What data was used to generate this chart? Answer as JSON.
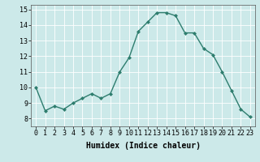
{
  "x": [
    0,
    1,
    2,
    3,
    4,
    5,
    6,
    7,
    8,
    9,
    10,
    11,
    12,
    13,
    14,
    15,
    16,
    17,
    18,
    19,
    20,
    21,
    22,
    23
  ],
  "y": [
    10.0,
    8.5,
    8.8,
    8.6,
    9.0,
    9.3,
    9.6,
    9.3,
    9.6,
    11.0,
    11.9,
    13.6,
    14.2,
    14.8,
    14.8,
    14.6,
    13.5,
    13.5,
    12.5,
    12.1,
    11.0,
    9.8,
    8.6,
    8.1
  ],
  "line_color": "#2e7d6e",
  "marker": "D",
  "marker_size": 2,
  "bg_color": "#cce9e9",
  "grid_color": "#ffffff",
  "xlabel": "Humidex (Indice chaleur)",
  "ylim": [
    7.5,
    15.3
  ],
  "xlim": [
    -0.5,
    23.5
  ],
  "yticks": [
    8,
    9,
    10,
    11,
    12,
    13,
    14,
    15
  ],
  "xticks": [
    0,
    1,
    2,
    3,
    4,
    5,
    6,
    7,
    8,
    9,
    10,
    11,
    12,
    13,
    14,
    15,
    16,
    17,
    18,
    19,
    20,
    21,
    22,
    23
  ],
  "xlabel_fontsize": 7,
  "tick_fontsize": 6,
  "line_width": 1.0
}
